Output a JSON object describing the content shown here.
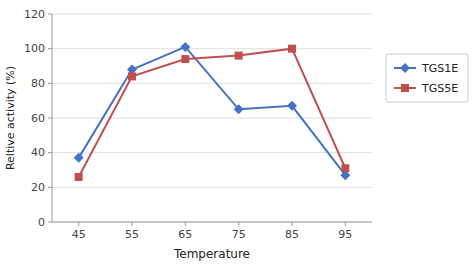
{
  "chart_data": {
    "type": "line",
    "xlabel": "Temperature",
    "ylabel": "Reltive activity (%)",
    "x": [
      45,
      55,
      65,
      75,
      85,
      95
    ],
    "series": [
      {
        "name": "TGS1E",
        "color": "#4472C4",
        "marker": "diamond",
        "values": [
          37,
          88,
          101,
          65,
          67,
          27
        ]
      },
      {
        "name": "TGS5E",
        "color": "#C0504D",
        "marker": "square",
        "values": [
          26,
          84,
          94,
          96,
          100,
          31
        ]
      }
    ],
    "xlim": [
      40,
      100
    ],
    "xticks": [
      45,
      55,
      65,
      75,
      85,
      95
    ],
    "ylim": [
      0,
      120
    ],
    "yticks": [
      0,
      20,
      40,
      60,
      80,
      100,
      120
    ],
    "grid": true,
    "legend": "right"
  }
}
